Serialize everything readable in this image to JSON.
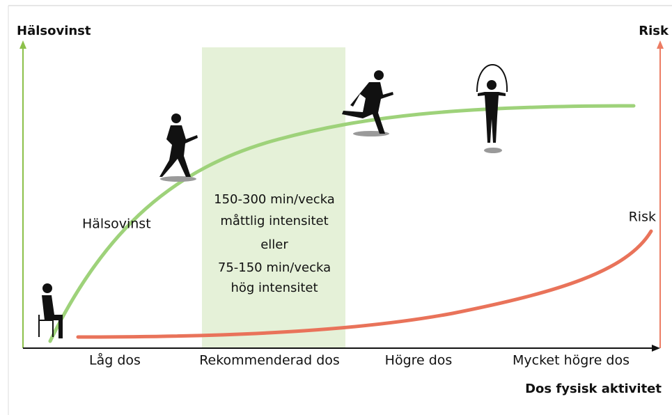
{
  "axes": {
    "left_label": "Hälsovinst",
    "right_label": "Risk",
    "x_label": "Dos fysisk aktivitet",
    "categories": [
      "Låg dos",
      "Rekommenderad dos",
      "Högre dos",
      "Mycket högre dos"
    ]
  },
  "curves": {
    "benefit_label": "Hälsovinst",
    "risk_label": "Risk"
  },
  "recommendation": {
    "lines": [
      "150-300 min/vecka",
      "måttlig intensitet",
      "eller",
      "75-150 min/vecka",
      "hög intensitet"
    ]
  }
}
